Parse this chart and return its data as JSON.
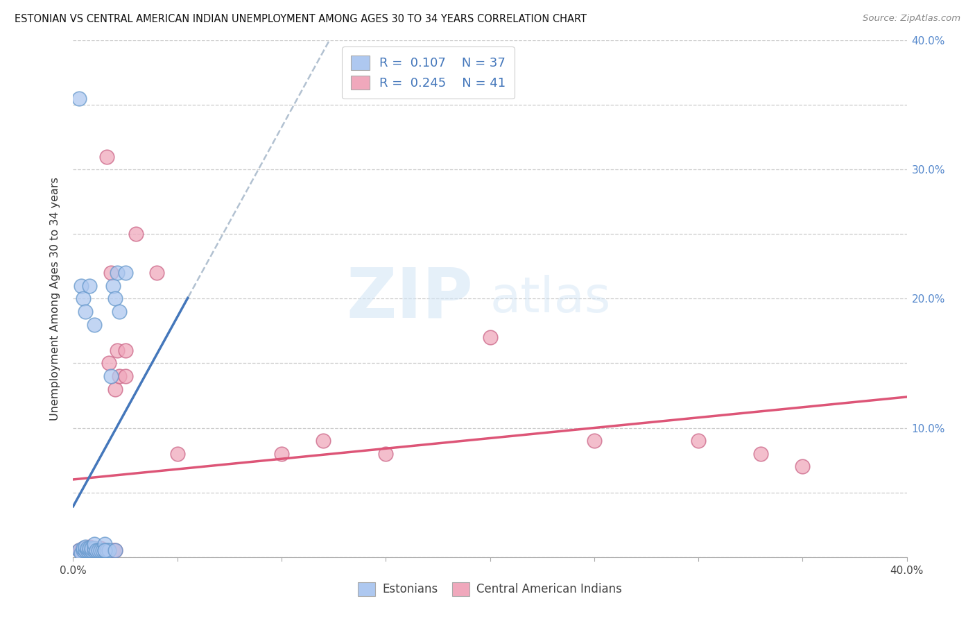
{
  "title": "ESTONIAN VS CENTRAL AMERICAN INDIAN UNEMPLOYMENT AMONG AGES 30 TO 34 YEARS CORRELATION CHART",
  "source": "Source: ZipAtlas.com",
  "ylabel": "Unemployment Among Ages 30 to 34 years",
  "xlim": [
    0,
    0.4
  ],
  "ylim": [
    0,
    0.4
  ],
  "legend_R1": "0.107",
  "legend_N1": "37",
  "legend_R2": "0.245",
  "legend_N2": "41",
  "watermark_zip": "ZIP",
  "watermark_atlas": "atlas",
  "color_estonian_fill": "#aec8f0",
  "color_estonian_edge": "#6699cc",
  "color_central_fill": "#f0a8bc",
  "color_central_edge": "#cc6688",
  "color_estonian_line": "#4477bb",
  "color_central_line": "#dd5577",
  "color_estonian_dashed": "#99bbdd",
  "estonian_x": [
    0.003,
    0.004,
    0.005,
    0.005,
    0.006,
    0.006,
    0.007,
    0.007,
    0.008,
    0.008,
    0.009,
    0.009,
    0.01,
    0.01,
    0.01,
    0.011,
    0.012,
    0.013,
    0.014,
    0.015,
    0.015,
    0.016,
    0.017,
    0.018,
    0.019,
    0.02,
    0.021,
    0.022,
    0.025,
    0.003,
    0.004,
    0.005,
    0.006,
    0.008,
    0.01,
    0.015,
    0.02
  ],
  "estonian_y": [
    0.005,
    0.003,
    0.005,
    0.007,
    0.005,
    0.008,
    0.005,
    0.007,
    0.005,
    0.007,
    0.005,
    0.007,
    0.005,
    0.007,
    0.01,
    0.005,
    0.005,
    0.005,
    0.005,
    0.005,
    0.01,
    0.005,
    0.005,
    0.14,
    0.21,
    0.2,
    0.22,
    0.19,
    0.22,
    0.355,
    0.21,
    0.2,
    0.19,
    0.21,
    0.18,
    0.005,
    0.005
  ],
  "central_x": [
    0.003,
    0.004,
    0.005,
    0.005,
    0.006,
    0.006,
    0.007,
    0.008,
    0.008,
    0.009,
    0.01,
    0.01,
    0.011,
    0.012,
    0.013,
    0.014,
    0.015,
    0.016,
    0.017,
    0.018,
    0.019,
    0.02,
    0.021,
    0.022,
    0.025,
    0.025,
    0.03,
    0.04,
    0.05,
    0.1,
    0.12,
    0.15,
    0.2,
    0.25,
    0.3,
    0.33,
    0.35,
    0.005,
    0.008,
    0.01,
    0.02
  ],
  "central_y": [
    0.005,
    0.005,
    0.003,
    0.007,
    0.005,
    0.007,
    0.005,
    0.005,
    0.008,
    0.005,
    0.005,
    0.007,
    0.005,
    0.005,
    0.007,
    0.005,
    0.005,
    0.31,
    0.15,
    0.22,
    0.005,
    0.13,
    0.16,
    0.14,
    0.14,
    0.16,
    0.25,
    0.22,
    0.08,
    0.08,
    0.09,
    0.08,
    0.17,
    0.09,
    0.09,
    0.08,
    0.07,
    0.005,
    0.005,
    0.005,
    0.005
  ]
}
